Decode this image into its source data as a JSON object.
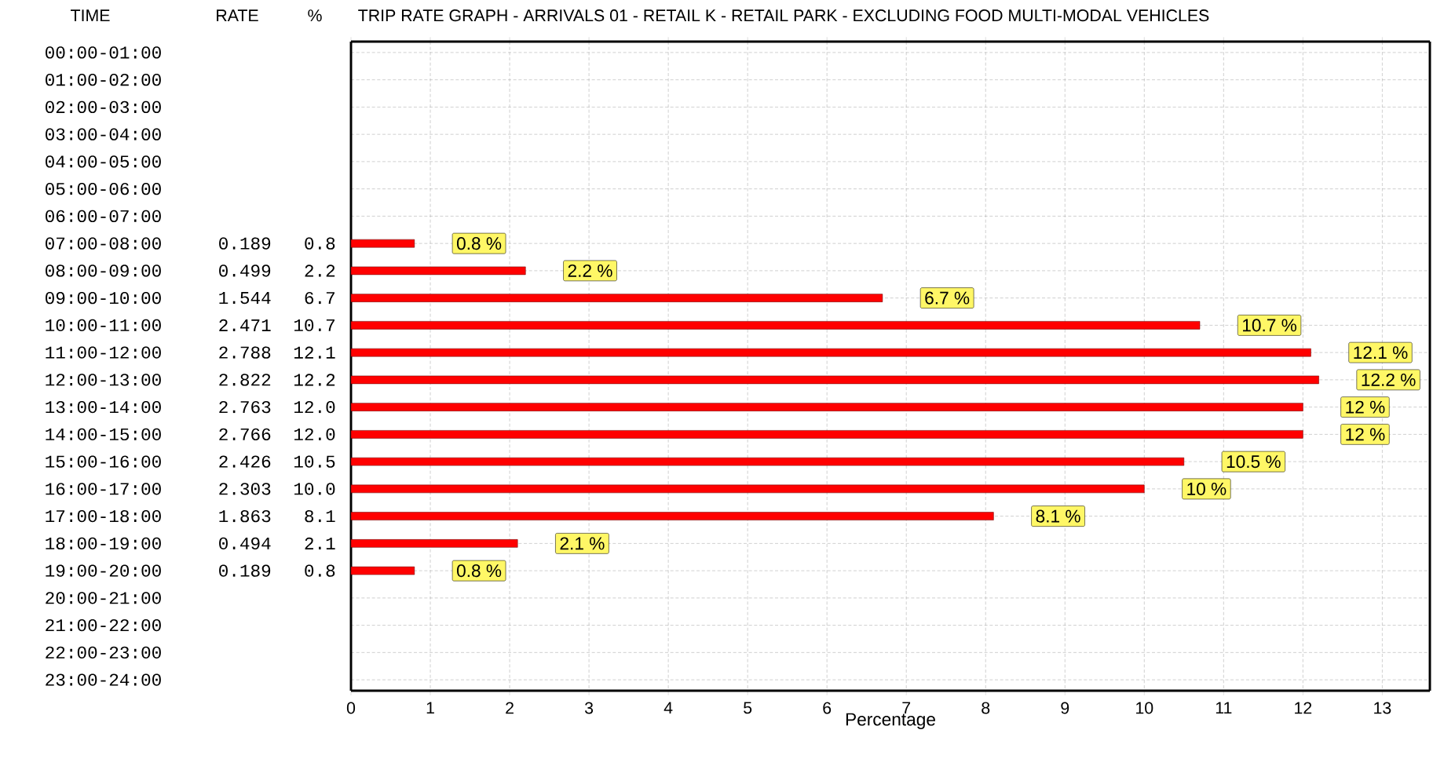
{
  "chart_data": {
    "type": "bar",
    "orientation": "horizontal",
    "title": "TRIP RATE GRAPH - ARRIVALS   01 - RETAIL  K - RETAIL PARK - EXCLUDING FOOD     MULTI-MODAL  VEHICLES",
    "xlabel": "Percentage",
    "categories": [
      "00:00-01:00",
      "01:00-02:00",
      "02:00-03:00",
      "03:00-04:00",
      "04:00-05:00",
      "05:00-06:00",
      "06:00-07:00",
      "07:00-08:00",
      "08:00-09:00",
      "09:00-10:00",
      "10:00-11:00",
      "11:00-12:00",
      "12:00-13:00",
      "13:00-14:00",
      "14:00-15:00",
      "15:00-16:00",
      "16:00-17:00",
      "17:00-18:00",
      "18:00-19:00",
      "19:00-20:00",
      "20:00-21:00",
      "21:00-22:00",
      "22:00-23:00",
      "23:00-24:00"
    ],
    "values": [
      null,
      null,
      null,
      null,
      null,
      null,
      null,
      0.8,
      2.2,
      6.7,
      10.7,
      12.1,
      12.2,
      12.0,
      12.0,
      10.5,
      10.0,
      8.1,
      2.1,
      0.8,
      null,
      null,
      null,
      null
    ],
    "value_labels": [
      null,
      null,
      null,
      null,
      null,
      null,
      null,
      "0.8 %",
      "2.2 %",
      "6.7 %",
      "10.7 %",
      "12.1 %",
      "12.2 %",
      "12 %",
      "12 %",
      "10.5 %",
      "10 %",
      "8.1 %",
      "2.1 %",
      "0.8 %",
      null,
      null,
      null,
      null
    ],
    "color": "#ff0000",
    "xlim": [
      0,
      13.6
    ],
    "xticks": [
      0,
      1,
      2,
      3,
      4,
      5,
      6,
      7,
      8,
      9,
      10,
      11,
      12,
      13
    ],
    "grid": true,
    "annotations": [
      "TIME",
      "RATE",
      "%",
      "0.189",
      "0.499",
      "1.544",
      "2.471",
      "2.788",
      "2.822",
      "2.763",
      "2.766",
      "2.426",
      "2.303",
      "1.863",
      "0.494",
      "0.189",
      "0.8",
      "2.2",
      "6.7",
      "10.7",
      "12.1",
      "12.2",
      "12.0",
      "12.0",
      "10.5",
      "10.0",
      "8.1",
      "2.1",
      "0.8"
    ]
  }
}
